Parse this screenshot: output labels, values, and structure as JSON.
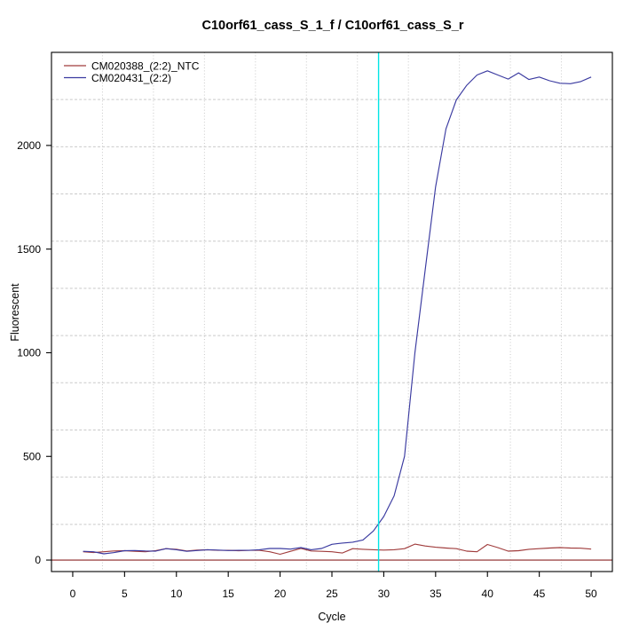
{
  "chart_data": {
    "type": "line",
    "title": "C10orf61_cass_S_1_f / C10orf61_cass_S_r",
    "xlabel": "Cycle",
    "ylabel": "Fluorescent",
    "xlim": [
      -2.05,
      52.05
    ],
    "ylim": [
      -55.5,
      2449
    ],
    "xticks": [
      0,
      5,
      10,
      15,
      20,
      25,
      30,
      35,
      40,
      45,
      50
    ],
    "yticks": [
      0,
      500,
      1000,
      1500,
      2000
    ],
    "grid": {
      "divisions": 11,
      "color": "#c9c9c9"
    },
    "axis_color": "#000000",
    "zero_line": {
      "y": 0,
      "color": "#8b2424"
    },
    "vline": {
      "x": 29.5,
      "color": "#00e5e5"
    },
    "legend_position": "top-left",
    "x": [
      1,
      2,
      3,
      4,
      5,
      6,
      7,
      8,
      9,
      10,
      11,
      12,
      13,
      14,
      15,
      16,
      17,
      18,
      19,
      20,
      21,
      22,
      23,
      24,
      25,
      26,
      27,
      28,
      29,
      30,
      31,
      32,
      33,
      34,
      35,
      36,
      37,
      38,
      39,
      40,
      41,
      42,
      43,
      44,
      45,
      46,
      47,
      48,
      49,
      50
    ],
    "series": [
      {
        "name": "CM020388_(2:2)_NTC",
        "color": "#a03c3c",
        "values": [
          40,
          36,
          40,
          44,
          45,
          42,
          40,
          45,
          55,
          52,
          44,
          48,
          50,
          47,
          47,
          45,
          47,
          47,
          40,
          28,
          42,
          56,
          44,
          42,
          40,
          34,
          55,
          52,
          50,
          48,
          50,
          55,
          77,
          68,
          62,
          58,
          55,
          43,
          40,
          75,
          60,
          43,
          45,
          52,
          55,
          58,
          60,
          58,
          57,
          53
        ]
      },
      {
        "name": "CM020431_(2:2)",
        "color": "#3a3aa0",
        "values": [
          42,
          40,
          30,
          36,
          45,
          46,
          44,
          43,
          55,
          50,
          42,
          46,
          50,
          48,
          46,
          47,
          47,
          50,
          56,
          56,
          53,
          60,
          50,
          56,
          76,
          82,
          86,
          97,
          140,
          210,
          310,
          500,
          1000,
          1400,
          1800,
          2080,
          2220,
          2290,
          2340,
          2360,
          2340,
          2320,
          2350,
          2318,
          2330,
          2312,
          2300,
          2298,
          2308,
          2330
        ]
      }
    ]
  }
}
